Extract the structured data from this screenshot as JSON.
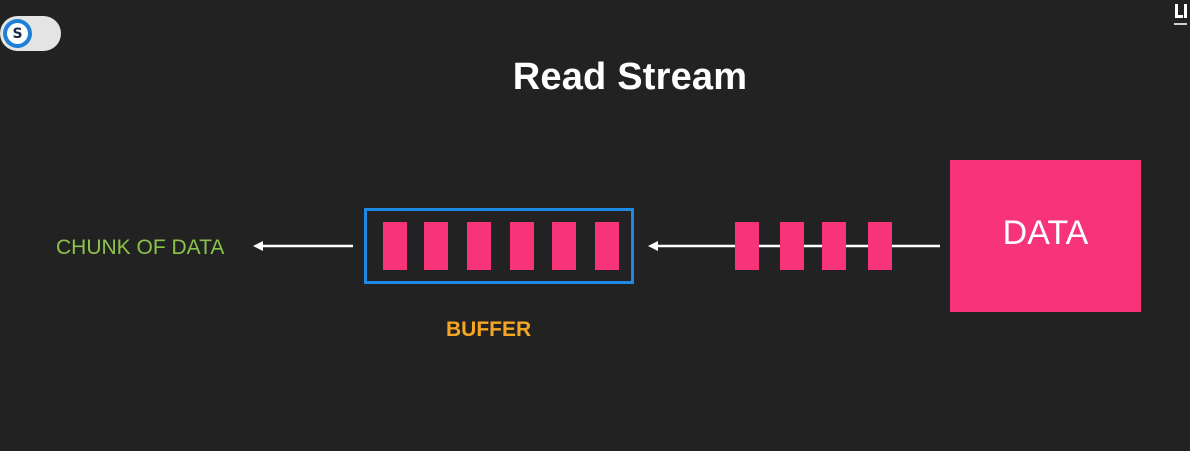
{
  "title": "Read Stream",
  "badge": {
    "letter": "S"
  },
  "labels": {
    "output": "CHUNK OF DATA",
    "buffer": "BUFFER",
    "source": "DATA"
  },
  "colors": {
    "background": "#222222",
    "chunk": "#f7347a",
    "buffer_border": "#1e88e5",
    "output_label": "#8bc34a",
    "buffer_label": "#f5a623",
    "arrow": "#ffffff"
  },
  "diagram": {
    "buffer_chunks": 6,
    "incoming_chunks": 4
  }
}
